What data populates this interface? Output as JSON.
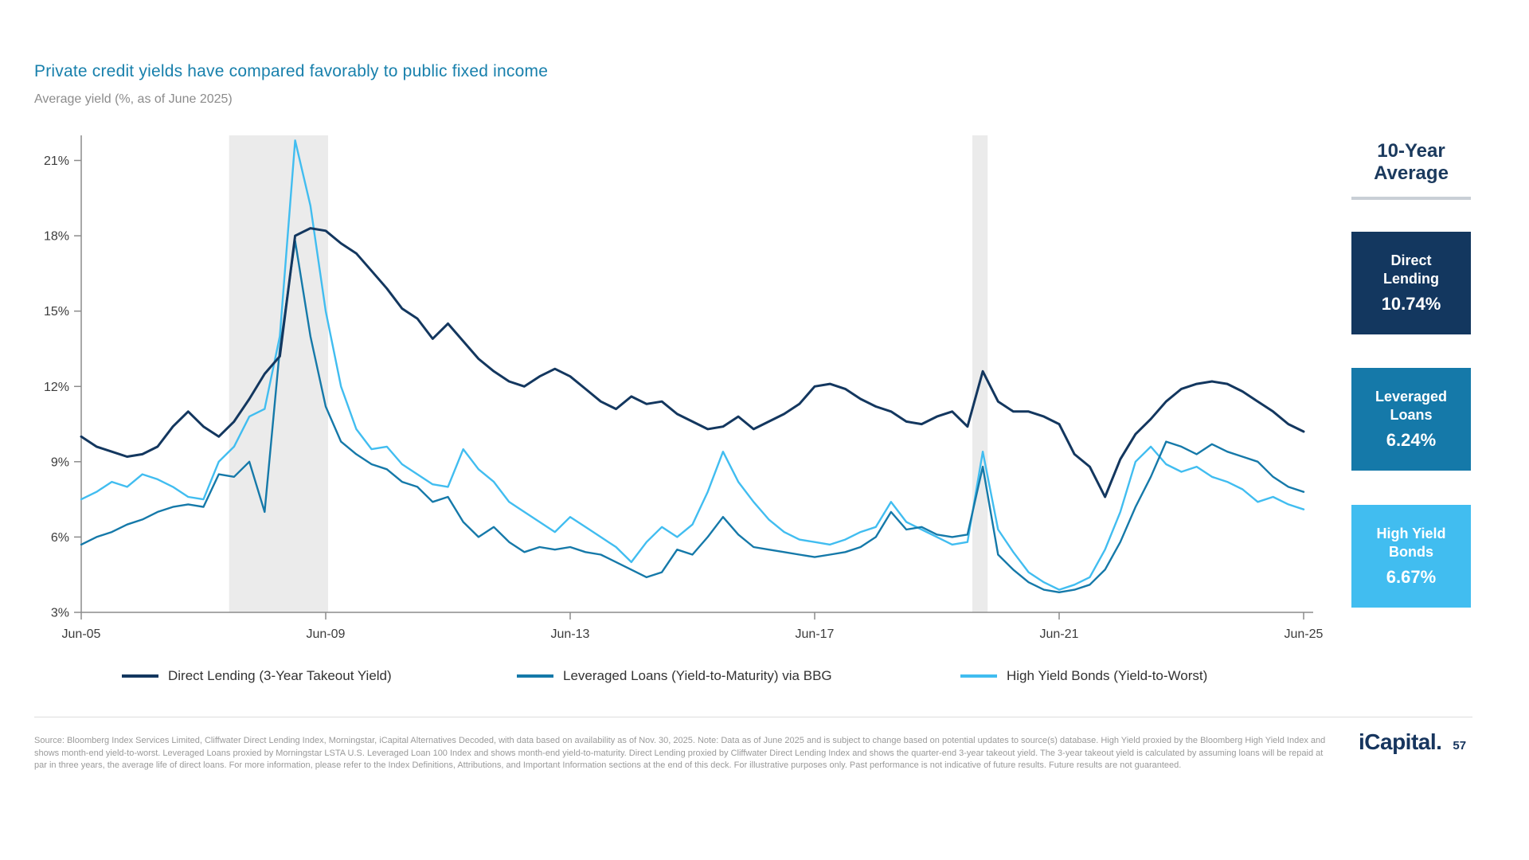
{
  "chart_data": {
    "type": "line",
    "title": "Private credit yields have compared favorably to public fixed income",
    "subtitle": "Average yield (%, as of June 2025)",
    "x_axis": {
      "ticks": [
        "Jun-05",
        "Jun-09",
        "Jun-13",
        "Jun-17",
        "Jun-21",
        "Jun-25"
      ],
      "tick_positions": [
        2005.5,
        2009.5,
        2013.5,
        2017.5,
        2021.5,
        2025.5
      ],
      "range": [
        2005.5,
        2025.5
      ]
    },
    "y_axis": {
      "label": "Average yield (%)",
      "ticks": [
        "3%",
        "6%",
        "9%",
        "12%",
        "15%",
        "18%",
        "21%"
      ],
      "tick_values": [
        3,
        6,
        9,
        12,
        15,
        18,
        21
      ],
      "range": [
        3,
        22
      ]
    },
    "grid": "off",
    "legend_position": "bottom",
    "recession_shading": [
      {
        "from": 2007.92,
        "to": 2009.54
      },
      {
        "from": 2020.08,
        "to": 2020.33
      }
    ],
    "shading_color": "#EBEBEB",
    "series": [
      {
        "name": "Direct Lending (3-Year Takeout Yield)",
        "color": "#13375F",
        "stroke_width": 3,
        "frequency": "quarterly",
        "x_start": 2005.5,
        "x_step": 0.25,
        "values": [
          10.0,
          9.6,
          9.4,
          9.2,
          9.3,
          9.6,
          10.4,
          11.0,
          10.4,
          10.0,
          10.6,
          11.5,
          12.5,
          13.2,
          18.0,
          18.3,
          18.2,
          17.7,
          17.3,
          16.6,
          15.9,
          15.1,
          14.7,
          13.9,
          14.5,
          13.8,
          13.1,
          12.6,
          12.2,
          12.0,
          12.4,
          12.7,
          12.4,
          11.9,
          11.4,
          11.1,
          11.6,
          11.3,
          11.4,
          10.9,
          10.6,
          10.3,
          10.4,
          10.8,
          10.3,
          10.6,
          10.9,
          11.3,
          12.0,
          12.1,
          11.9,
          11.5,
          11.2,
          11.0,
          10.6,
          10.5,
          10.8,
          11.0,
          10.4,
          12.6,
          11.4,
          11.0,
          11.0,
          10.8,
          10.5,
          9.3,
          8.8,
          7.6,
          9.1,
          10.1,
          10.7,
          11.4,
          11.9,
          12.1,
          12.2,
          12.1,
          11.8,
          11.4,
          11.0,
          10.5,
          10.2
        ]
      },
      {
        "name": "Leveraged Loans (Yield-to-Maturity) via BBG",
        "color": "#1579A9",
        "stroke_width": 2.4,
        "frequency": "quarterly",
        "x_start": 2005.5,
        "x_step": 0.25,
        "values": [
          5.7,
          6.0,
          6.2,
          6.5,
          6.7,
          7.0,
          7.2,
          7.3,
          7.2,
          8.5,
          8.4,
          9.0,
          7.0,
          13.5,
          17.8,
          14.0,
          11.2,
          9.8,
          9.3,
          8.9,
          8.7,
          8.2,
          8.0,
          7.4,
          7.6,
          6.6,
          6.0,
          6.4,
          5.8,
          5.4,
          5.6,
          5.5,
          5.6,
          5.4,
          5.3,
          5.0,
          4.7,
          4.4,
          4.6,
          5.5,
          5.3,
          6.0,
          6.8,
          6.1,
          5.6,
          5.5,
          5.4,
          5.3,
          5.2,
          5.3,
          5.4,
          5.6,
          6.0,
          7.0,
          6.3,
          6.4,
          6.1,
          6.0,
          6.1,
          8.8,
          5.3,
          4.7,
          4.2,
          3.9,
          3.8,
          3.9,
          4.1,
          4.7,
          5.8,
          7.2,
          8.4,
          9.8,
          9.6,
          9.3,
          9.7,
          9.4,
          9.2,
          9.0,
          8.4,
          8.0,
          7.8
        ]
      },
      {
        "name": "High Yield Bonds (Yield-to-Worst)",
        "color": "#41BDF0",
        "stroke_width": 2.4,
        "frequency": "quarterly",
        "x_start": 2005.5,
        "x_step": 0.25,
        "values": [
          7.5,
          7.8,
          8.2,
          8.0,
          8.5,
          8.3,
          8.0,
          7.6,
          7.5,
          9.0,
          9.6,
          10.8,
          11.1,
          14.0,
          21.8,
          19.2,
          15.0,
          12.0,
          10.3,
          9.5,
          9.6,
          8.9,
          8.5,
          8.1,
          8.0,
          9.5,
          8.7,
          8.2,
          7.4,
          7.0,
          6.6,
          6.2,
          6.8,
          6.4,
          6.0,
          5.6,
          5.0,
          5.8,
          6.4,
          6.0,
          6.5,
          7.8,
          9.4,
          8.2,
          7.4,
          6.7,
          6.2,
          5.9,
          5.8,
          5.7,
          5.9,
          6.2,
          6.4,
          7.4,
          6.6,
          6.3,
          6.0,
          5.7,
          5.8,
          9.4,
          6.3,
          5.4,
          4.6,
          4.2,
          3.9,
          4.1,
          4.4,
          5.5,
          7.0,
          9.0,
          9.6,
          8.9,
          8.6,
          8.8,
          8.4,
          8.2,
          7.9,
          7.4,
          7.6,
          7.3,
          7.1
        ]
      }
    ]
  },
  "sidebar": {
    "title": "10-Year Average",
    "cards": [
      {
        "label": "Direct Lending",
        "value": "10.74%",
        "color": "#13375F"
      },
      {
        "label": "Leveraged Loans",
        "value": "6.24%",
        "color": "#1579A9"
      },
      {
        "label": "High Yield Bonds",
        "value": "6.67%",
        "color": "#41BDF0"
      }
    ]
  },
  "footer": {
    "source": "Source: Bloomberg Index Services Limited, Cliffwater Direct Lending Index, Morningstar, iCapital Alternatives Decoded, with data based on availability as of Nov. 30, 2025. Note: Data as of June 2025 and is subject to change based on potential updates to source(s) database. High Yield proxied by the Bloomberg High Yield Index and shows month-end yield-to-worst. Leveraged Loans proxied by Morningstar LSTA U.S. Leveraged Loan 100 Index and shows month-end yield-to-maturity. Direct Lending proxied by Cliffwater Direct Lending Index and shows the quarter-end 3-year takeout yield. The 3-year takeout yield is calculated by assuming loans will be repaid at par in three years, the average life of direct loans. For more information, please refer to the Index Definitions, Attributions, and Important Information sections at the end of this deck. For illustrative purposes only. Past performance is not indicative of future results. Future results are not guaranteed.",
    "brand": "iCapital.",
    "page_number": "57"
  }
}
